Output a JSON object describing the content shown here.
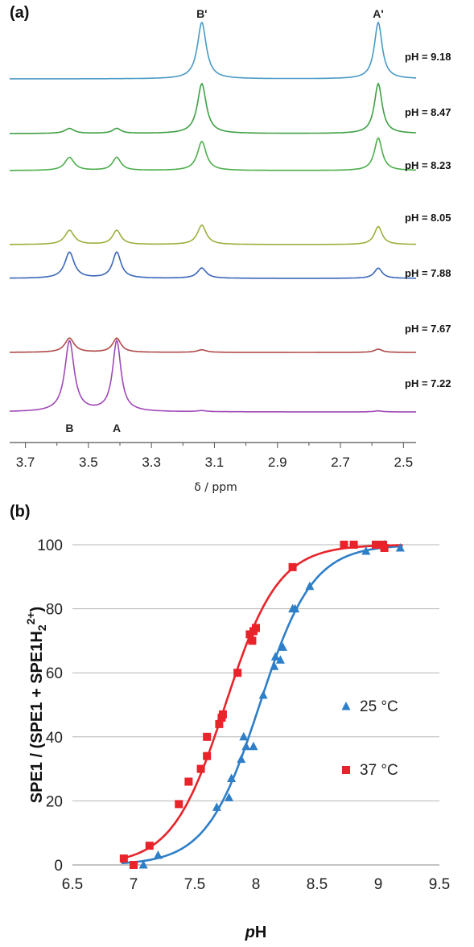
{
  "panel_a_label": "(a)",
  "panel_b_label": "(b)",
  "chart_data": [
    {
      "type": "line",
      "xlabel": "δ / ppm",
      "x_ticks": [
        "3.7",
        "3.5",
        "3.3",
        "3.1",
        "2.9",
        "2.7",
        "2.5"
      ],
      "xlim": [
        3.75,
        2.46
      ],
      "x_reversed": true,
      "peak_labels": [
        {
          "text": "B'",
          "x": 3.14
        },
        {
          "text": "A'",
          "x": 2.58
        },
        {
          "text": "B",
          "x": 3.56
        },
        {
          "text": "A",
          "x": 3.41
        }
      ],
      "peak_positions": {
        "B": 3.56,
        "A": 3.41,
        "B_prime": 3.14,
        "A_prime": 2.58
      },
      "series": [
        {
          "name": "pH = 9.18",
          "color": "#4a9ac4",
          "heights": {
            "B": 0,
            "A": 0,
            "B_prime": 1.0,
            "A_prime": 1.0
          }
        },
        {
          "name": "pH = 8.47",
          "color": "#3fa045",
          "heights": {
            "B": 0.1,
            "A": 0.1,
            "B_prime": 1.0,
            "A_prime": 1.0
          }
        },
        {
          "name": "pH = 8.23",
          "color": "#4cae4c",
          "heights": {
            "B": 0.18,
            "A": 0.18,
            "B_prime": 0.4,
            "A_prime": 0.45
          }
        },
        {
          "name": "pH = 8.05",
          "color": "#9ab03c",
          "heights": {
            "B": 0.22,
            "A": 0.22,
            "B_prime": 0.3,
            "A_prime": 0.28
          }
        },
        {
          "name": "pH = 7.88",
          "color": "#3a66b8",
          "heights": {
            "B": 0.38,
            "A": 0.38,
            "B_prime": 0.15,
            "A_prime": 0.15
          }
        },
        {
          "name": "pH = 7.67",
          "color": "#b04a4a",
          "heights": {
            "B": 0.22,
            "A": 0.22,
            "B_prime": 0.04,
            "A_prime": 0.05
          }
        },
        {
          "name": "pH = 7.22",
          "color": "#a048b8",
          "heights": {
            "B": 1.35,
            "A": 1.35,
            "B_prime": 0.02,
            "A_prime": 0.02
          }
        }
      ]
    },
    {
      "type": "scatter",
      "xlabel": "pH",
      "ylabel": "SPE1 / (SPE1 + SPE1H2 2+)",
      "xlim": [
        6.5,
        9.5
      ],
      "ylim": [
        0,
        100
      ],
      "x_ticks": [
        "6.5",
        "7",
        "7.5",
        "8",
        "8.5",
        "9",
        "9.5"
      ],
      "y_ticks": [
        "0",
        "20",
        "40",
        "60",
        "80",
        "100"
      ],
      "grid": true,
      "legend": "right-middle",
      "series": [
        {
          "name": "25 °C",
          "color": "#2e7ec8",
          "marker": "triangle",
          "fit_pKa": 8.03,
          "points": [
            [
              7.08,
              0
            ],
            [
              7.2,
              3
            ],
            [
              7.68,
              18
            ],
            [
              7.78,
              21
            ],
            [
              7.8,
              27
            ],
            [
              7.88,
              33
            ],
            [
              7.9,
              40
            ],
            [
              7.92,
              37
            ],
            [
              7.98,
              37
            ],
            [
              8.06,
              53
            ],
            [
              8.15,
              62
            ],
            [
              8.16,
              65
            ],
            [
              8.2,
              64
            ],
            [
              8.22,
              68
            ],
            [
              8.3,
              80
            ],
            [
              8.32,
              80
            ],
            [
              8.44,
              87
            ],
            [
              8.9,
              98
            ],
            [
              9.05,
              100
            ],
            [
              9.18,
              99
            ]
          ]
        },
        {
          "name": "37 °C",
          "color": "#e8232a",
          "marker": "square",
          "fit_pKa": 7.75,
          "points": [
            [
              6.92,
              2
            ],
            [
              7.0,
              0
            ],
            [
              7.13,
              6
            ],
            [
              7.37,
              19
            ],
            [
              7.45,
              26
            ],
            [
              7.55,
              30
            ],
            [
              7.6,
              34
            ],
            [
              7.6,
              40
            ],
            [
              7.7,
              44
            ],
            [
              7.72,
              46
            ],
            [
              7.73,
              47
            ],
            [
              7.85,
              60
            ],
            [
              7.95,
              72
            ],
            [
              7.97,
              70
            ],
            [
              7.98,
              73
            ],
            [
              8.0,
              74
            ],
            [
              8.3,
              93
            ],
            [
              8.72,
              100
            ],
            [
              8.8,
              100
            ],
            [
              8.98,
              100
            ],
            [
              9.04,
              100
            ],
            [
              9.05,
              99
            ]
          ]
        }
      ]
    }
  ]
}
